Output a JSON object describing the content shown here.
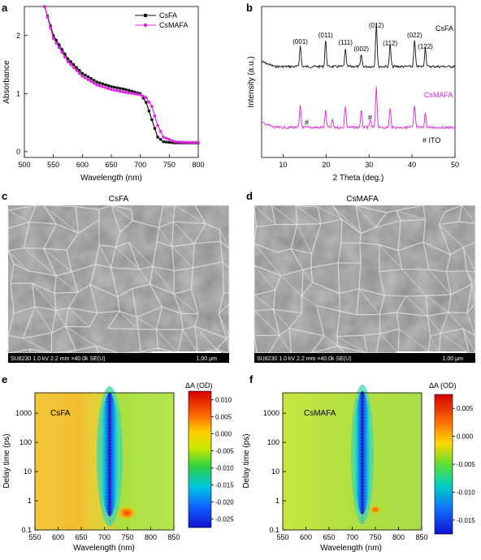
{
  "panel_a": {
    "letter": "a",
    "ylabel": "Absorbance",
    "xlabel": "Wavelength (nm)",
    "xticks": [
      "500",
      "550",
      "600",
      "650",
      "700",
      "750",
      "800"
    ],
    "yticks": [
      "0",
      "1",
      "2"
    ],
    "legend": [
      "CsFA",
      "CsMAFA"
    ]
  },
  "panel_b": {
    "letter": "b",
    "ylabel": "Intensity (a.u.)",
    "xlabel": "2 Theta (deg.)",
    "xticks": [
      "10",
      "20",
      "30",
      "40",
      "50"
    ],
    "label_csfa": "CsFA",
    "label_csmafa": "CsMAFA",
    "peak_labels": [
      "(001)",
      "(011)",
      "(111)",
      "(002)",
      "(012)",
      "(112)",
      "(022)",
      "(122)"
    ],
    "hash": "#",
    "ito_label": "# ITO"
  },
  "panel_c": {
    "letter": "c",
    "title": "CsFA",
    "info": "SU8230 1.0 kV 2.2 mm ×40.0k SE(U)",
    "scale": "1.00 μm"
  },
  "panel_d": {
    "letter": "d",
    "title": "CsMAFA",
    "info": "SU8230 1.0 kV 2.2 mm ×40.0k SE(U)",
    "scale": "1.00 μm"
  },
  "panel_e": {
    "letter": "e",
    "label": "CsFA",
    "ylabel": "Delay time (ps)",
    "xlabel": "Wavelength (nm)",
    "xticks": [
      "550",
      "600",
      "650",
      "700",
      "750",
      "800",
      "850"
    ],
    "yticks": [
      "0.1",
      "1",
      "10",
      "100",
      "1000"
    ],
    "cbar_title": "ΔA (OD)",
    "cbar_ticks": [
      "0.010",
      "0.005",
      "0.000",
      "-0.005",
      "-0.010",
      "-0.015",
      "-0.020",
      "-0.025"
    ]
  },
  "panel_f": {
    "letter": "f",
    "label": "CsMAFA",
    "ylabel": "Delay time (ps)",
    "xlabel": "Wavelength (nm)",
    "xticks": [
      "550",
      "600",
      "650",
      "700",
      "750",
      "800",
      "850"
    ],
    "yticks": [
      "0.1",
      "1",
      "10",
      "100",
      "1000"
    ],
    "cbar_title": "ΔA (OD)",
    "cbar_ticks": [
      "0.005",
      "0.000",
      "-0.005",
      "-0.010",
      "-0.015"
    ]
  },
  "colors": {
    "csfa": "#111111",
    "csmafa": "#e020e0",
    "sem_bg": "#8c8c8c"
  },
  "chart_data": [
    {
      "type": "line",
      "panel": "a",
      "xlabel": "Wavelength (nm)",
      "ylabel": "Absorbance",
      "xlim": [
        500,
        800
      ],
      "ylim": [
        -0.1,
        2.5
      ],
      "legend": "top-right",
      "series": [
        {
          "name": "CsFA",
          "x": [
            535,
            550,
            575,
            600,
            625,
            650,
            675,
            700,
            710,
            720,
            730,
            740,
            760,
            780,
            800
          ],
          "y": [
            2.5,
            2.0,
            1.6,
            1.35,
            1.2,
            1.12,
            1.07,
            1.0,
            0.85,
            0.55,
            0.25,
            0.17,
            0.15,
            0.15,
            0.15
          ]
        },
        {
          "name": "CsMAFA",
          "x": [
            535,
            550,
            575,
            600,
            625,
            650,
            675,
            700,
            710,
            720,
            730,
            740,
            760,
            780,
            800
          ],
          "y": [
            2.5,
            1.95,
            1.55,
            1.3,
            1.15,
            1.07,
            1.02,
            0.98,
            0.93,
            0.78,
            0.45,
            0.25,
            0.17,
            0.16,
            0.16
          ]
        }
      ]
    },
    {
      "type": "line",
      "panel": "b",
      "xlabel": "2 Theta (deg.)",
      "ylabel": "Intensity (a.u.)",
      "xlim": [
        5,
        50
      ],
      "peaks_deg": [
        14.0,
        19.9,
        24.5,
        28.2,
        31.7,
        34.9,
        40.6,
        43.1
      ],
      "peak_labels": [
        "(001)",
        "(011)",
        "(111)",
        "(002)",
        "(012)",
        "(112)",
        "(022)",
        "(122)"
      ],
      "series": [
        {
          "name": "CsFA",
          "peak_heights": [
            0.45,
            0.55,
            0.35,
            0.25,
            0.9,
            0.45,
            0.55,
            0.4
          ]
        },
        {
          "name": "CsMAFA",
          "peak_heights": [
            0.45,
            0.35,
            0.45,
            0.35,
            0.85,
            0.4,
            0.45,
            0.3
          ]
        }
      ]
    },
    {
      "type": "heatmap",
      "panel": "e",
      "xlabel": "Wavelength (nm)",
      "ylabel": "Delay time (ps)",
      "xlim": [
        550,
        850
      ],
      "ylim": [
        0.1,
        5000
      ],
      "yscale": "log",
      "bleach_center_nm": 712,
      "zlim": [
        -0.025,
        0.01
      ]
    },
    {
      "type": "heatmap",
      "panel": "f",
      "xlabel": "Wavelength (nm)",
      "ylabel": "Delay time (ps)",
      "xlim": [
        550,
        850
      ],
      "ylim": [
        0.1,
        5000
      ],
      "yscale": "log",
      "bleach_center_nm": 722,
      "zlim": [
        -0.018,
        0.01
      ]
    }
  ]
}
